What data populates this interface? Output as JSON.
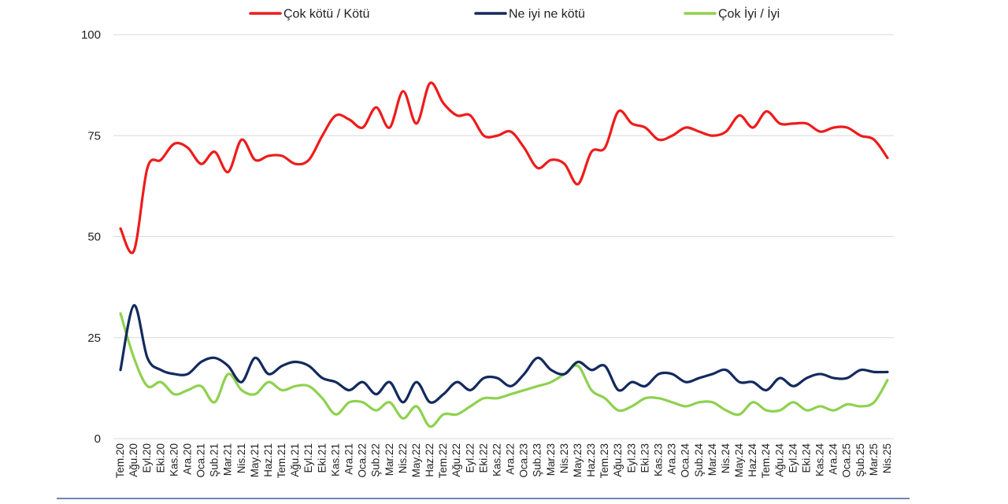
{
  "chart_data": {
    "type": "line",
    "title": "",
    "xlabel": "",
    "ylabel": "",
    "ylim": [
      0,
      100
    ],
    "yticks": [
      0,
      25,
      50,
      75,
      100
    ],
    "grid": true,
    "legend_position": "top",
    "categories": [
      "Tem.20",
      "Ağu.20",
      "Eyl.20",
      "Eki.20",
      "Kas.20",
      "Ara.20",
      "Oca.21",
      "Şub.21",
      "Mar.21",
      "Nis.21",
      "May.21",
      "Haz.21",
      "Tem.21",
      "Ağu.21",
      "Eyl.21",
      "Eki.21",
      "Kas.21",
      "Ara.21",
      "Oca.22",
      "Şub.22",
      "Mar.22",
      "Nis.22",
      "May.22",
      "Haz.22",
      "Tem.22",
      "Ağu.22",
      "Eyl.22",
      "Eki.22",
      "Kas.22",
      "Ara.22",
      "Oca.23",
      "Şub.23",
      "Mar.23",
      "Nis.23",
      "May.23",
      "Haz.23",
      "Tem.23",
      "Ağu.23",
      "Eyl.23",
      "Eki.23",
      "Kas.23",
      "Ara.23",
      "Oca.24",
      "Şub.24",
      "Mar.24",
      "Nis.24",
      "May.24",
      "Haz.24",
      "Tem.24",
      "Ağu.24",
      "Eyl.24",
      "Eki.24",
      "Kas.24",
      "Ara.24",
      "Oca.25",
      "Şub.25",
      "Mar.25",
      "Nis.25"
    ],
    "series": [
      {
        "name": "Çok kötü / Kötü",
        "color": "#ee1c1c",
        "values": [
          52,
          46.5,
          67,
          69,
          73,
          72,
          68,
          71,
          66,
          74,
          69,
          70,
          70,
          68,
          69,
          75,
          80,
          79,
          77,
          82,
          77,
          86,
          78,
          88,
          83,
          80,
          80,
          75,
          75,
          76,
          72,
          67,
          69,
          68,
          63,
          71,
          72,
          81,
          78,
          77,
          74,
          75,
          77,
          76,
          75,
          76,
          80,
          77,
          81,
          78,
          78,
          78,
          76,
          77,
          77,
          75,
          74,
          69.5
        ]
      },
      {
        "name": "Ne iyi ne kötü",
        "color": "#132a5e",
        "values": [
          17,
          33,
          20,
          17,
          16,
          16,
          19,
          20,
          18,
          14,
          20,
          16,
          18,
          19,
          18,
          15,
          14,
          12,
          14,
          11,
          14,
          9,
          14,
          9,
          11,
          14,
          12,
          15,
          15,
          13,
          16,
          20,
          17,
          16,
          19,
          17,
          18,
          12,
          14,
          13,
          16,
          16,
          14,
          15,
          16,
          17,
          14,
          14,
          12,
          15,
          13,
          15,
          16,
          15,
          15,
          17,
          16.5,
          16.5
        ]
      },
      {
        "name": "Çok İyi / İyi",
        "color": "#8fd14f",
        "values": [
          31,
          20,
          13,
          14,
          11,
          12,
          13,
          9,
          16,
          12,
          11,
          14,
          12,
          13,
          13,
          10,
          6,
          9,
          9,
          7,
          9,
          5,
          8,
          3,
          6,
          6,
          8,
          10,
          10,
          11,
          12,
          13,
          14,
          16,
          18,
          12,
          10,
          7,
          8,
          10,
          10,
          9,
          8,
          9,
          9,
          7,
          6,
          9,
          7,
          7,
          9,
          7,
          8,
          7,
          8.5,
          8,
          9,
          14.5
        ]
      }
    ]
  }
}
